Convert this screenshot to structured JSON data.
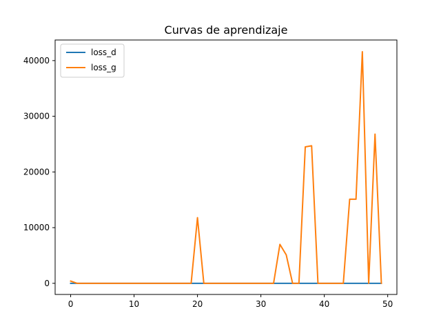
{
  "chart_data": {
    "type": "line",
    "title": "Curvas de aprendizaje",
    "xlabel": "",
    "ylabel": "",
    "xlim": [
      -2.45,
      51.45
    ],
    "ylim": [
      -2000,
      43700
    ],
    "x_ticks": [
      0,
      10,
      20,
      30,
      40,
      50
    ],
    "y_ticks": [
      0,
      10000,
      20000,
      30000,
      40000
    ],
    "grid": false,
    "legend_position": "upper-left",
    "x": [
      0,
      1,
      2,
      3,
      4,
      5,
      6,
      7,
      8,
      9,
      10,
      11,
      12,
      13,
      14,
      15,
      16,
      17,
      18,
      19,
      20,
      21,
      22,
      23,
      24,
      25,
      26,
      27,
      28,
      29,
      30,
      31,
      32,
      33,
      34,
      35,
      36,
      37,
      38,
      39,
      40,
      41,
      42,
      43,
      44,
      45,
      46,
      47,
      48,
      49
    ],
    "series": [
      {
        "name": "loss_d",
        "color": "#1f77b4",
        "values": [
          1.4,
          1.3,
          1.3,
          1.3,
          1.3,
          1.3,
          1.3,
          1.3,
          1.3,
          1.3,
          1.3,
          1.3,
          1.3,
          1.3,
          1.3,
          1.3,
          1.3,
          1.3,
          1.3,
          1.3,
          1.3,
          1.3,
          1.3,
          1.3,
          1.3,
          1.3,
          1.3,
          1.3,
          1.3,
          1.3,
          1.3,
          1.3,
          1.3,
          1.3,
          1.3,
          1.3,
          1.3,
          1.3,
          1.3,
          1.3,
          1.3,
          1.3,
          1.3,
          1.3,
          1.3,
          1.3,
          1.3,
          1.3,
          1.3,
          1.3
        ]
      },
      {
        "name": "loss_g",
        "color": "#ff7f0e",
        "values": [
          400,
          0,
          0,
          0,
          0,
          0,
          0,
          0,
          0,
          0,
          0,
          0,
          0,
          0,
          0,
          0,
          0,
          0,
          0,
          0,
          11800,
          0,
          0,
          0,
          0,
          0,
          0,
          0,
          0,
          0,
          0,
          0,
          0,
          7000,
          5100,
          0,
          0,
          24500,
          24700,
          0,
          0,
          0,
          0,
          0,
          15100,
          15100,
          41600,
          0,
          26800,
          0
        ]
      }
    ]
  }
}
